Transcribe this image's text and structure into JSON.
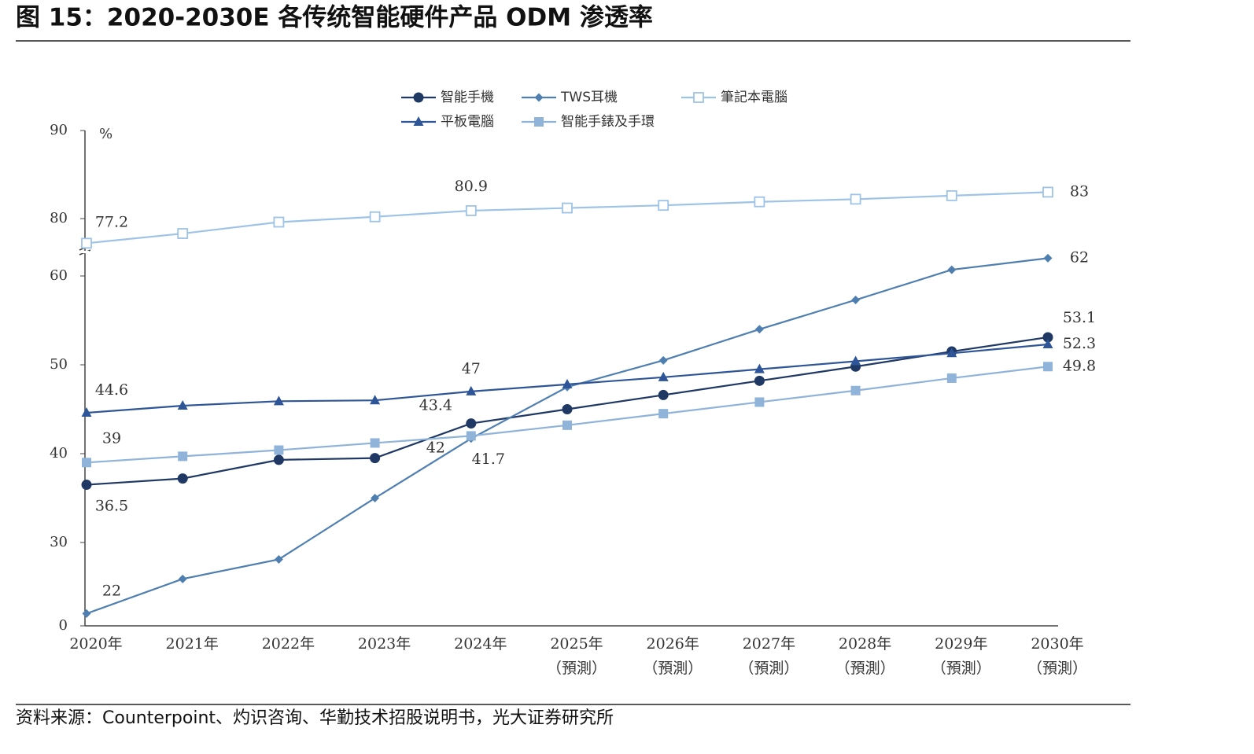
{
  "title": "图 15：2020-2030E 各传统智能硬件产品 ODM 渗透率",
  "source": "资料来源：Counterpoint、灼识咨询、华勤技术招股说明书，光大证券研究所",
  "chart_data": {
    "type": "line",
    "y_unit": "%",
    "categories": [
      "2020年",
      "2021年",
      "2022年",
      "2023年",
      "2024年",
      "2025年（預測）",
      "2026年（預測）",
      "2027年（預測）",
      "2028年（預測）",
      "2029年（預測）",
      "2030年（預測）"
    ],
    "ylim": [
      0,
      90
    ],
    "yticks": [
      0,
      30,
      40,
      50,
      60,
      80,
      90
    ],
    "series": [
      {
        "name": "智能手機",
        "color": "#1f3864",
        "marker": "circle",
        "values": [
          36.5,
          37.2,
          39.3,
          39.5,
          43.4,
          45.0,
          46.6,
          48.2,
          49.8,
          51.5,
          53.1
        ]
      },
      {
        "name": "TWS耳機",
        "color": "#4f7fb0",
        "marker": "diamond",
        "values": [
          22.0,
          25.9,
          28.1,
          35.0,
          41.7,
          47.5,
          50.5,
          54.0,
          57.3,
          60.7,
          62.0
        ]
      },
      {
        "name": "筆記本電腦",
        "color": "#9ec3e6",
        "marker": "hollow-square",
        "values": [
          77.2,
          78.3,
          79.6,
          80.2,
          80.9,
          81.2,
          81.5,
          81.9,
          82.2,
          82.6,
          83.0
        ]
      },
      {
        "name": "平板電腦",
        "color": "#2e5597",
        "marker": "triangle",
        "values": [
          44.6,
          45.4,
          45.9,
          46.0,
          47.0,
          47.8,
          48.6,
          49.5,
          50.4,
          51.3,
          52.3
        ]
      },
      {
        "name": "智能手錶及手環",
        "color": "#8fb3d9",
        "marker": "square",
        "values": [
          39.0,
          39.7,
          40.4,
          41.2,
          42.0,
          43.2,
          44.5,
          45.8,
          47.1,
          48.5,
          49.8
        ]
      }
    ]
  }
}
